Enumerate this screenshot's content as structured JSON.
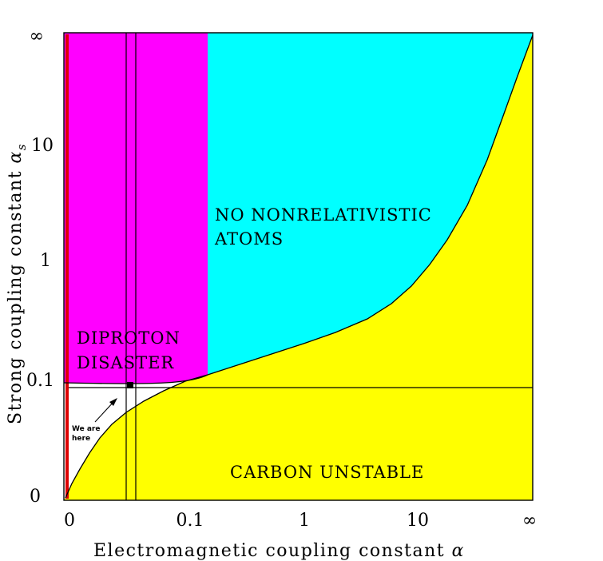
{
  "chart_data": {
    "type": "area",
    "xlabel": "Electromagnetic coupling constant",
    "xlabel_symbol": "α",
    "ylabel": "Strong coupling constant",
    "ylabel_symbol": "α",
    "ylabel_subscript": "s",
    "x_ticks": [
      "0",
      "0.1",
      "1",
      "10",
      "∞"
    ],
    "y_ticks": [
      "0",
      "0.1",
      "1",
      "10",
      "∞"
    ],
    "regions": [
      {
        "label_lines": [
          "DIPROTON",
          "DISASTER"
        ],
        "color": "#ff00ff"
      },
      {
        "label_lines": [
          "NO NONRELATIVISTIC",
          "ATOMS"
        ],
        "color": "#00ffff"
      },
      {
        "label_lines": [
          "CARBON UNSTABLE"
        ],
        "color": "#ffff00"
      }
    ],
    "annotation": {
      "lines": [
        "We are",
        "here"
      ]
    },
    "line_color": "#000000",
    "edge_band_color": "#dd0000",
    "background": "#ffffff"
  }
}
